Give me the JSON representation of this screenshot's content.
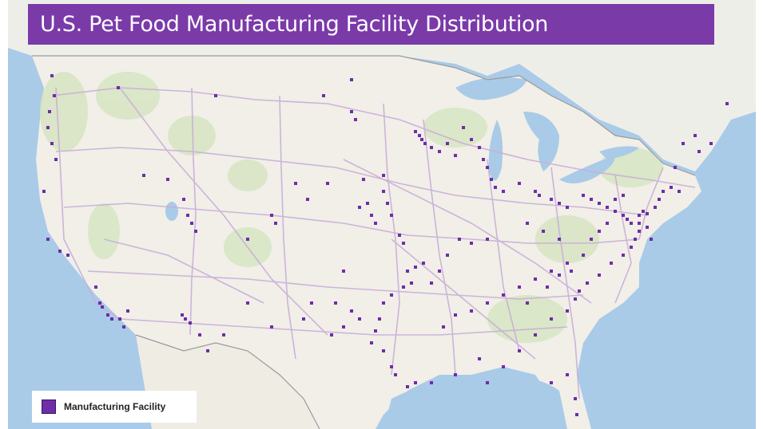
{
  "title": "U.S. Pet Food Manufacturing Facility Distribution",
  "legend": {
    "label": "Manufacturing Facility",
    "swatch_color": "#6f2da8"
  },
  "colors": {
    "water": "#a9cbe8",
    "land": "#f1efe8",
    "greenery": "#d5e5bf",
    "roads": "#c9aed8",
    "borders": "#9a9a9a",
    "facility": "#6f2da8",
    "title_bar": "#7a3aa8"
  },
  "map_features": {
    "labels": "none",
    "basemap": "road",
    "marker_shape": "square"
  }
}
